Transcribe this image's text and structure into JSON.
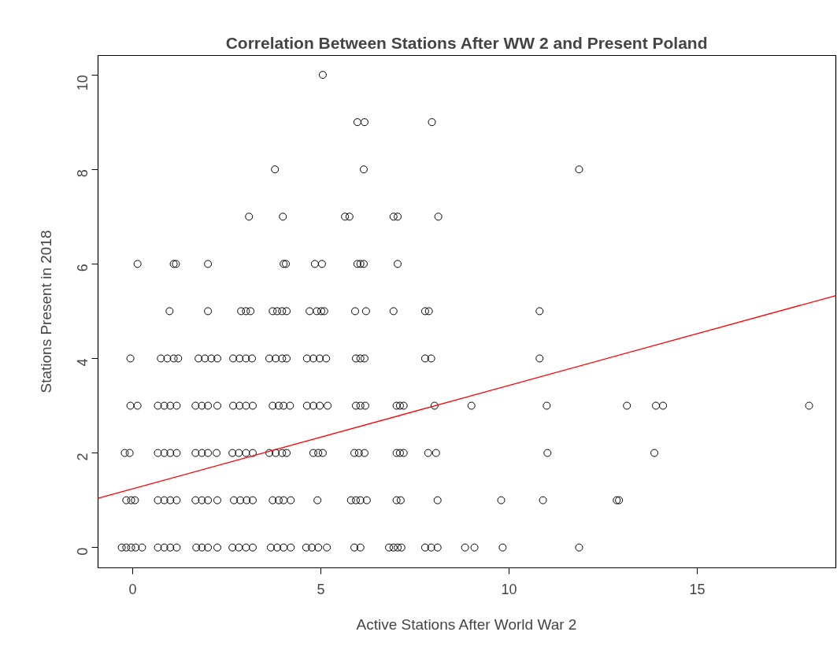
{
  "chart_data": {
    "type": "scatter",
    "title": "Correlation Between Stations After WW 2 and Present Poland",
    "xlabel": "Active Stations After World War 2",
    "ylabel": "Stations Present in 2018",
    "xlim": [
      -0.92,
      18.68
    ],
    "ylim": [
      -0.43,
      10.41
    ],
    "xticks": [
      0,
      5,
      10,
      15
    ],
    "yticks": [
      0,
      2,
      4,
      6,
      8,
      10
    ],
    "grid": false,
    "marker": "circle",
    "series": [
      {
        "color": "#000000",
        "x": [
          5.05,
          5.97,
          6.16,
          7.95,
          3.78,
          6.14,
          11.86,
          3.09,
          3.99,
          5.64,
          5.76,
          6.93,
          7.04,
          8.12,
          0.13,
          1.09,
          1.15,
          2.0,
          4.01,
          4.07,
          4.84,
          5.03,
          5.97,
          6.05,
          6.14,
          7.04,
          0.98,
          2.0,
          2.88,
          3.01,
          3.13,
          3.72,
          3.84,
          3.97,
          4.09,
          4.7,
          4.89,
          5.01,
          5.09,
          5.91,
          6.2,
          6.93,
          7.77,
          7.87,
          10.81,
          -0.06,
          0.75,
          0.92,
          1.09,
          1.21,
          1.75,
          1.92,
          2.09,
          2.25,
          2.67,
          2.84,
          3.01,
          3.17,
          3.63,
          3.8,
          3.97,
          4.09,
          4.63,
          4.8,
          4.97,
          5.14,
          5.93,
          6.05,
          6.16,
          7.77,
          7.93,
          10.81,
          -0.06,
          0.13,
          0.67,
          0.84,
          1.0,
          1.17,
          1.67,
          1.84,
          2.0,
          2.25,
          2.67,
          2.84,
          3.01,
          3.19,
          3.72,
          3.88,
          4.01,
          4.18,
          4.63,
          4.8,
          4.97,
          5.18,
          5.93,
          6.05,
          6.18,
          7.01,
          7.1,
          7.2,
          8.02,
          9.0,
          11.0,
          13.13,
          13.9,
          14.09,
          17.97,
          -0.21,
          -0.08,
          0.67,
          0.84,
          1.0,
          1.17,
          1.67,
          1.84,
          2.0,
          2.23,
          2.65,
          2.82,
          3.01,
          3.19,
          3.63,
          3.8,
          3.97,
          4.09,
          4.8,
          4.93,
          5.05,
          5.89,
          6.01,
          6.16,
          7.01,
          7.1,
          7.2,
          7.85,
          8.06,
          11.02,
          13.86,
          -0.17,
          -0.04,
          0.06,
          0.67,
          0.84,
          1.0,
          1.17,
          1.67,
          1.84,
          2.0,
          2.25,
          2.69,
          2.86,
          3.03,
          3.19,
          3.72,
          3.88,
          4.01,
          4.2,
          4.91,
          5.8,
          5.93,
          6.05,
          6.22,
          7.01,
          7.12,
          8.1,
          9.79,
          10.9,
          12.86,
          12.92,
          -0.29,
          -0.17,
          -0.04,
          0.08,
          0.25,
          0.67,
          0.84,
          1.0,
          1.17,
          1.69,
          1.84,
          2.0,
          2.25,
          2.65,
          2.82,
          3.01,
          3.19,
          3.67,
          3.84,
          4.01,
          4.2,
          4.61,
          4.76,
          4.93,
          5.16,
          5.89,
          6.05,
          6.81,
          6.93,
          7.04,
          7.14,
          7.77,
          7.93,
          8.1,
          8.83,
          9.08,
          9.83,
          11.86
        ],
        "values": [
          10,
          9,
          9,
          9,
          8,
          8,
          8,
          7,
          7,
          7,
          7,
          7,
          7,
          7,
          6,
          6,
          6,
          6,
          6,
          6,
          6,
          6,
          6,
          6,
          6,
          6,
          5,
          5,
          5,
          5,
          5,
          5,
          5,
          5,
          5,
          5,
          5,
          5,
          5,
          5,
          5,
          5,
          5,
          5,
          5,
          4,
          4,
          4,
          4,
          4,
          4,
          4,
          4,
          4,
          4,
          4,
          4,
          4,
          4,
          4,
          4,
          4,
          4,
          4,
          4,
          4,
          4,
          4,
          4,
          4,
          4,
          4,
          3,
          3,
          3,
          3,
          3,
          3,
          3,
          3,
          3,
          3,
          3,
          3,
          3,
          3,
          3,
          3,
          3,
          3,
          3,
          3,
          3,
          3,
          3,
          3,
          3,
          3,
          3,
          3,
          3,
          3,
          3,
          3,
          3,
          3,
          3,
          2,
          2,
          2,
          2,
          2,
          2,
          2,
          2,
          2,
          2,
          2,
          2,
          2,
          2,
          2,
          2,
          2,
          2,
          2,
          2,
          2,
          2,
          2,
          2,
          2,
          2,
          2,
          2,
          2,
          2,
          2,
          1,
          1,
          1,
          1,
          1,
          1,
          1,
          1,
          1,
          1,
          1,
          1,
          1,
          1,
          1,
          1,
          1,
          1,
          1,
          1,
          1,
          1,
          1,
          1,
          1,
          1,
          1,
          1,
          1,
          1,
          1,
          0,
          0,
          0,
          0,
          0,
          0,
          0,
          0,
          0,
          0,
          0,
          0,
          0,
          0,
          0,
          0,
          0,
          0,
          0,
          0,
          0,
          0,
          0,
          0,
          0,
          0,
          0,
          0,
          0,
          0,
          0,
          0,
          0,
          0,
          0,
          0,
          0,
          0
        ]
      },
      {
        "type": "line",
        "marker": "none",
        "color": "#ff0000",
        "x": [
          -0.92,
          18.68
        ],
        "values": [
          1.04,
          5.33
        ]
      }
    ]
  }
}
